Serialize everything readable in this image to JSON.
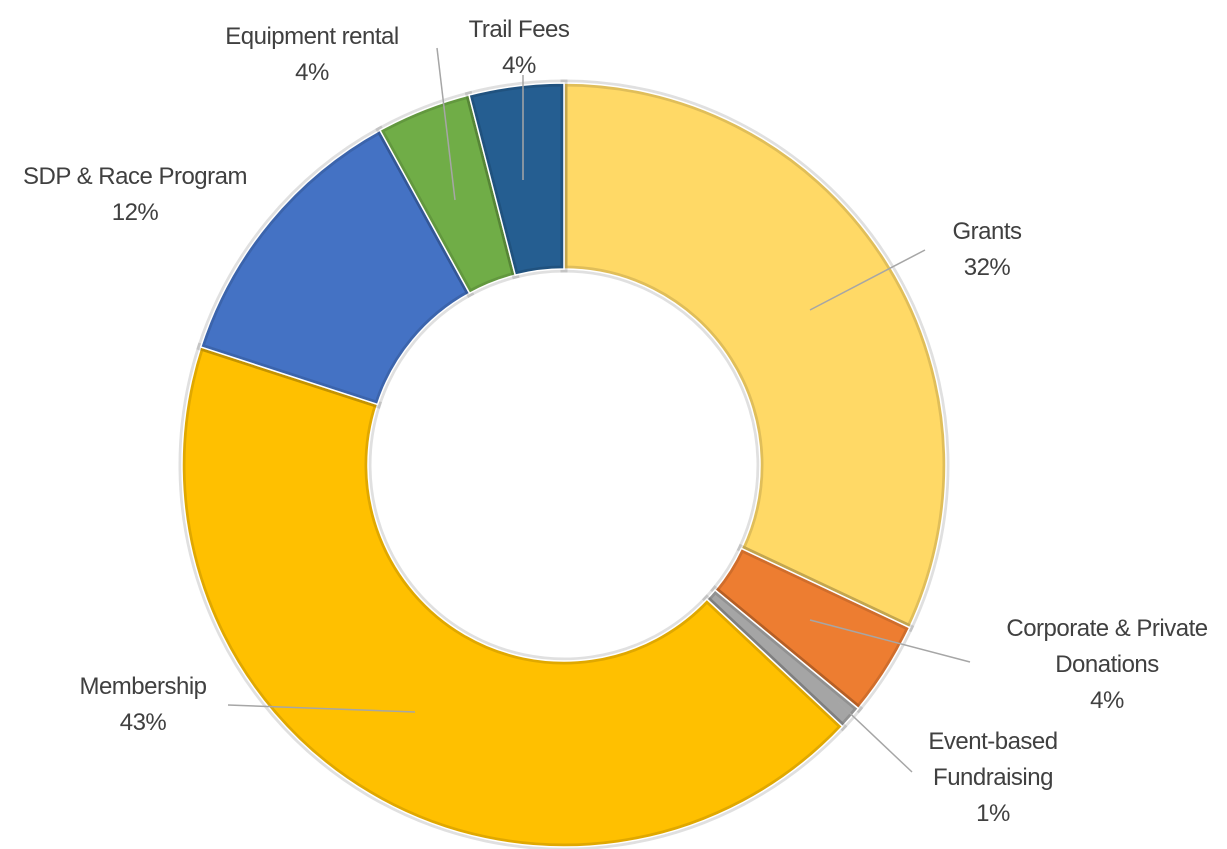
{
  "chart_data": {
    "type": "donut",
    "categories": [
      "Grants",
      "Corporate & Private Donations",
      "Event-based Fundraising",
      "Membership",
      "SDP & Race Program",
      "Equipment rental",
      "Trail Fees"
    ],
    "values": [
      32,
      4,
      1,
      43,
      12,
      4,
      4
    ],
    "value_labels": [
      "32%",
      "4%",
      "1%",
      "43%",
      "12%",
      "4%",
      "4%"
    ],
    "colors": [
      "#FFD966",
      "#ED7D31",
      "#A5A5A5",
      "#FFC000",
      "#4472C4",
      "#70AD47",
      "#255E91"
    ]
  }
}
